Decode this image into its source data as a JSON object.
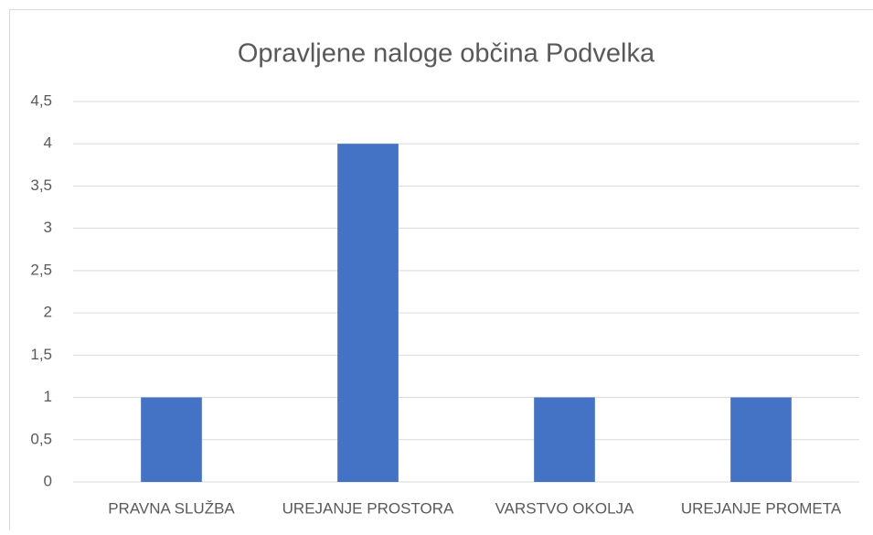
{
  "chart_data": {
    "type": "bar",
    "title": "Opravljene naloge občina Podvelka",
    "categories": [
      "PRAVNA SLUŽBA",
      "UREJANJE PROSTORA",
      "VARSTVO OKOLJA",
      "UREJANJE PROMETA"
    ],
    "values": [
      1,
      4,
      1,
      1
    ],
    "color": "#4472c4",
    "ylim": [
      0,
      4.5
    ],
    "yticks": [
      0,
      {
        "value": 0.5,
        "label": "0,5"
      },
      1,
      {
        "value": 1.5,
        "label": "1,5"
      },
      2,
      {
        "value": 2.5,
        "label": "2,5"
      },
      3,
      {
        "value": 3.5,
        "label": "3,5"
      },
      4,
      {
        "value": 4.5,
        "label": "4,5"
      }
    ],
    "grid": true
  }
}
